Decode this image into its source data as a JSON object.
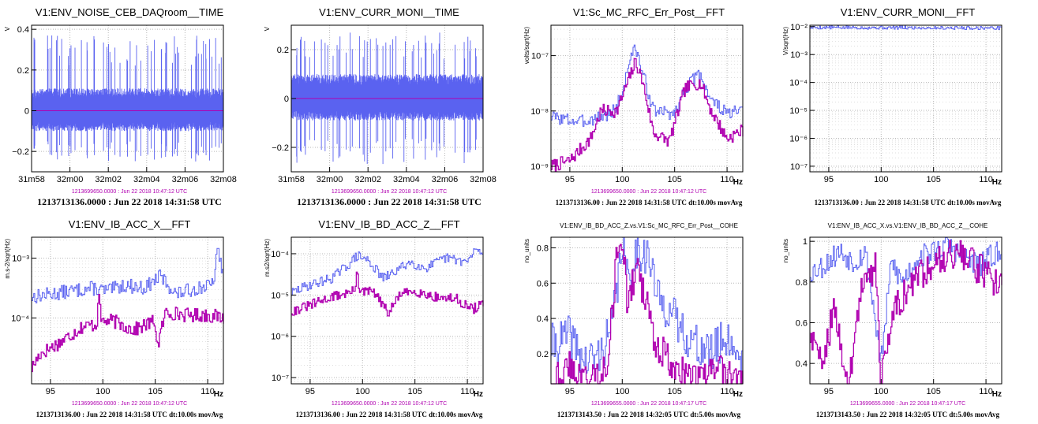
{
  "colors": {
    "blue": "#5a62f0",
    "magenta": "#b000b0",
    "grid": "#b8b8b8"
  },
  "chart_data": [
    {
      "type": "line",
      "title": "V1:ENV_NOISE_CEB_DAQroom__TIME",
      "ylabel": "V",
      "xlabel": "",
      "x_ticks": [
        "31m58",
        "32m00",
        "32m02",
        "32m04",
        "32m06",
        "32m08"
      ],
      "x_range": [
        0,
        10
      ],
      "y_ticks": [
        -0.2,
        0,
        0.2,
        0.4
      ],
      "y_tick_labels": [
        "−0.2",
        "0",
        "0.2",
        "0.4"
      ],
      "ylim": [
        -0.3,
        0.42
      ],
      "series": [
        {
          "color": "blue",
          "band": {
            "typical": [
              -0.1,
              0.11
            ],
            "max": [
              -0.25,
              0.37
            ]
          },
          "seed": 11
        },
        {
          "color": "magenta",
          "constant": 0
        }
      ],
      "ref_time": "1213699650.0000 : Jun 22 2018 10:47:12 UTC",
      "footer": "1213713136.0000 : Jun 22 2018 14:31:58 UTC"
    },
    {
      "type": "line",
      "title": "V1:ENV_CURR_MONI__TIME",
      "ylabel": "V",
      "xlabel": "",
      "x_ticks": [
        "31m58",
        "32m00",
        "32m02",
        "32m04",
        "32m06",
        "32m08"
      ],
      "x_range": [
        0,
        10
      ],
      "y_ticks": [
        -0.2,
        0,
        0.2
      ],
      "y_tick_labels": [
        "−0.2",
        "0",
        "0.2"
      ],
      "ylim": [
        -0.3,
        0.3
      ],
      "series": [
        {
          "color": "blue",
          "band": {
            "typical": [
              -0.09,
              0.1
            ],
            "max": [
              -0.27,
              0.27
            ]
          },
          "seed": 23
        },
        {
          "color": "magenta",
          "constant": 0
        }
      ],
      "ref_time": "1213699650.0000 : Jun 22 2018 10:47:12 UTC",
      "footer": "1213713136.0000 : Jun 22 2018 14:31:58 UTC"
    },
    {
      "type": "line",
      "log_y": true,
      "title": "V1:Sc_MC_RFC_Err_Post__FFT",
      "ylabel": "volts/sqrt(Hz)",
      "xlabel": "Hz",
      "x_ticks": [
        95,
        100,
        105,
        110
      ],
      "x_range": [
        93.2,
        111.5
      ],
      "y_ticks": [
        -9,
        -8,
        -7
      ],
      "y_tick_labels": [
        "10⁻⁹",
        "10⁻⁸",
        "10⁻⁷"
      ],
      "ylim_log10": [
        -9.1,
        -6.45
      ],
      "series": [
        {
          "color": "blue",
          "x": [
            93.2,
            96,
            99,
            100,
            100.8,
            101.3,
            101.8,
            103,
            105,
            106,
            107,
            107.5,
            108.5,
            110,
            111.5
          ],
          "log_y": [
            -8.1,
            -8.2,
            -8.05,
            -7.7,
            -7.0,
            -6.88,
            -7.2,
            -8.0,
            -8.05,
            -7.6,
            -7.4,
            -7.35,
            -7.8,
            -8.05,
            -8.0
          ],
          "seed": 3
        },
        {
          "color": "magenta",
          "x": [
            93.2,
            95,
            97,
            98,
            99.5,
            100.5,
            101.3,
            102,
            103,
            104.5,
            106,
            107,
            107.5,
            108.5,
            110,
            111.5
          ],
          "log_y": [
            -9.0,
            -8.9,
            -8.5,
            -8.0,
            -8.0,
            -7.5,
            -7.1,
            -7.5,
            -8.4,
            -8.55,
            -7.6,
            -7.5,
            -7.5,
            -8.0,
            -8.5,
            -8.35
          ],
          "seed": 7
        }
      ],
      "ref_time": "1213699650.0000 : Jun 22 2018 10:47:12 UTC",
      "footer": "1213713136.00 : Jun 22 2018 14:31:58 UTC dt:10.00s movAvg"
    },
    {
      "type": "line",
      "log_y": true,
      "title": "V1:ENV_CURR_MONI__FFT",
      "ylabel": "V/sqrt(Hz)",
      "xlabel": "Hz",
      "x_ticks": [
        95,
        100,
        105,
        110
      ],
      "x_range": [
        93.2,
        111.5
      ],
      "y_ticks": [
        -7,
        -6,
        -5,
        -4,
        -3,
        -2
      ],
      "y_tick_labels": [
        "10⁻⁷",
        "10⁻⁶",
        "10⁻⁵",
        "10⁻⁴",
        "10⁻³",
        "10⁻²"
      ],
      "ylim_log10": [
        -7.2,
        -1.95
      ],
      "series": [
        {
          "color": "blue",
          "x": [
            93.2,
            111.5
          ],
          "log_y": [
            -2.03,
            -2.05
          ],
          "seed": 5,
          "jitter": 0.06
        }
      ],
      "ref_time": "",
      "footer": "1213713136.00 : Jun 22 2018 14:31:58 UTC dt:10.00s movAvg"
    },
    {
      "type": "line",
      "log_y": true,
      "title": "V1:ENV_IB_ACC_X__FFT",
      "ylabel": "m.s-2/sqrt(Hz)",
      "xlabel": "Hz",
      "x_ticks": [
        95,
        100,
        105,
        110
      ],
      "x_range": [
        93.2,
        111.5
      ],
      "y_ticks": [
        -4,
        -3
      ],
      "y_tick_labels": [
        "10⁻⁴",
        "10⁻³"
      ],
      "ylim_log10": [
        -5.1,
        -2.65
      ],
      "series": [
        {
          "color": "blue",
          "x": [
            93.2,
            95,
            97,
            99,
            100.5,
            102,
            104,
            105.5,
            107,
            109,
            110.5,
            111,
            111.5
          ],
          "log_y": [
            -3.65,
            -3.6,
            -3.55,
            -3.5,
            -3.55,
            -3.45,
            -3.5,
            -3.3,
            -3.6,
            -3.5,
            -3.45,
            -2.85,
            -3.3
          ],
          "seed": 13
        },
        {
          "color": "magenta",
          "x": [
            93.2,
            94,
            96,
            98,
            99.5,
            99.6,
            99.8,
            101,
            103,
            105,
            105.2,
            106,
            108,
            110,
            111.5
          ],
          "log_y": [
            -4.85,
            -4.6,
            -4.4,
            -4.15,
            -4.1,
            -3.3,
            -4.05,
            -4.05,
            -4.2,
            -4.05,
            -4.5,
            -3.9,
            -3.95,
            -3.95,
            -4.0
          ],
          "seed": 17
        }
      ],
      "ref_time": "1213699650.0000 : Jun 22 2018 10:47:12 UTC",
      "footer": "1213713136.00 : Jun 22 2018 14:31:58 UTC dt:10.00s movAvg"
    },
    {
      "type": "line",
      "log_y": true,
      "title": "V1:ENV_IB_BD_ACC_Z__FFT",
      "ylabel": "m.s2/sqrt(Hz)",
      "xlabel": "Hz",
      "x_ticks": [
        95,
        100,
        105,
        110
      ],
      "x_range": [
        93.2,
        111.5
      ],
      "y_ticks": [
        -7,
        -6,
        -5,
        -4
      ],
      "y_tick_labels": [
        "10⁻⁷",
        "10⁻⁶",
        "10⁻⁵",
        "10⁻⁴"
      ],
      "ylim_log10": [
        -7.15,
        -3.6
      ],
      "series": [
        {
          "color": "blue",
          "x": [
            93.2,
            95,
            97,
            98.5,
            99.5,
            100.5,
            102,
            103,
            104.5,
            106,
            108,
            110,
            111,
            111.5
          ],
          "log_y": [
            -4.95,
            -4.75,
            -4.6,
            -4.3,
            -4.05,
            -4.15,
            -4.6,
            -4.45,
            -4.2,
            -4.35,
            -4.1,
            -4.2,
            -3.85,
            -4.1
          ],
          "seed": 29
        },
        {
          "color": "magenta",
          "x": [
            93.2,
            95,
            97,
            99.3,
            99.5,
            99.7,
            101,
            102.5,
            103.5,
            105,
            107,
            109,
            110.5,
            111.5
          ],
          "log_y": [
            -5.4,
            -5.25,
            -5.05,
            -4.9,
            -4.2,
            -4.95,
            -4.9,
            -5.45,
            -5.0,
            -4.9,
            -5.05,
            -5.1,
            -5.35,
            -5.2
          ],
          "seed": 31
        }
      ],
      "ref_time": "1213699650.0000 : Jun 22 2018 10:47:12 UTC",
      "footer": "1213713136.00 : Jun 22 2018 14:31:58 UTC dt:10.00s movAvg"
    },
    {
      "type": "line",
      "title": "V1:ENV_IB_BD_ACC_Z.vs.V1:Sc_MC_RFC_Err_Post__COHE",
      "ylabel": "no_units",
      "xlabel": "Hz",
      "x_ticks": [
        95,
        100,
        105,
        110
      ],
      "x_range": [
        93.2,
        111.5
      ],
      "y_ticks": [
        0.2,
        0.4,
        0.6,
        0.8
      ],
      "y_tick_labels": [
        "0.2",
        "0.4",
        "0.6",
        "0.8"
      ],
      "ylim": [
        0.03,
        0.86
      ],
      "series": [
        {
          "color": "blue",
          "x": [
            93.2,
            95,
            96.5,
            98,
            99,
            99.6,
            100,
            100.5,
            101.5,
            102.5,
            103.5,
            104.5,
            105.5,
            107,
            108.5,
            110,
            111.5
          ],
          "y": [
            0.25,
            0.3,
            0.15,
            0.2,
            0.35,
            0.6,
            0.86,
            0.6,
            0.8,
            0.75,
            0.5,
            0.45,
            0.35,
            0.25,
            0.2,
            0.3,
            0.15
          ],
          "seed": 41,
          "jitter": 0.12
        },
        {
          "color": "magenta",
          "x": [
            93.2,
            95,
            97,
            98.5,
            99.2,
            99.6,
            100.1,
            100.6,
            101.3,
            102,
            103,
            104,
            105.5,
            107,
            109,
            111.5
          ],
          "y": [
            0.05,
            0.12,
            0.05,
            0.15,
            0.5,
            0.86,
            0.75,
            0.45,
            0.7,
            0.55,
            0.3,
            0.2,
            0.1,
            0.05,
            0.1,
            0.05
          ],
          "seed": 43,
          "jitter": 0.1
        }
      ],
      "ref_time": "1213699655.0000 : Jun 22 2018 10:47:17 UTC",
      "footer": "1213713143.50 : Jun 22 2018 14:32:05 UTC dt:5.00s movAvg"
    },
    {
      "type": "line",
      "title": "V1:ENV_IB_ACC_X.vs.V1:ENV_IB_BD_ACC_Z__COHE",
      "ylabel": "no_units",
      "xlabel": "Hz",
      "x_ticks": [
        95,
        100,
        105,
        110
      ],
      "x_range": [
        93.2,
        111.5
      ],
      "y_ticks": [
        0.4,
        0.6,
        0.8,
        1
      ],
      "y_tick_labels": [
        "0.4",
        "0.6",
        "0.8",
        "1"
      ],
      "ylim": [
        0.3,
        1.02
      ],
      "series": [
        {
          "color": "blue",
          "x": [
            93.2,
            94.5,
            96,
            97.5,
            98.5,
            99.5,
            100,
            101,
            102,
            103.5,
            105,
            106.5,
            108,
            109.5,
            111,
            111.5
          ],
          "y": [
            0.85,
            0.88,
            0.95,
            0.9,
            0.95,
            0.6,
            0.4,
            0.9,
            0.8,
            0.92,
            0.95,
            0.98,
            0.92,
            0.88,
            0.95,
            0.9
          ],
          "seed": 53,
          "jitter": 0.06
        },
        {
          "color": "magenta",
          "x": [
            93.2,
            94.2,
            95.5,
            97,
            98,
            98.8,
            99.5,
            100,
            100.5,
            101.5,
            102.5,
            104,
            105.5,
            107,
            109,
            110.5,
            111.5
          ],
          "y": [
            0.55,
            0.4,
            0.65,
            0.3,
            0.75,
            0.8,
            0.9,
            0.3,
            0.5,
            0.7,
            0.75,
            0.85,
            0.92,
            0.95,
            0.88,
            0.82,
            0.8
          ],
          "seed": 59,
          "jitter": 0.08
        }
      ],
      "ref_time": "1213699655.0000 : Jun 22 2018 10:47:17 UTC",
      "footer": "1213713143.50 : Jun 22 2018 14:32:05 UTC dt:5.00s movAvg"
    }
  ]
}
